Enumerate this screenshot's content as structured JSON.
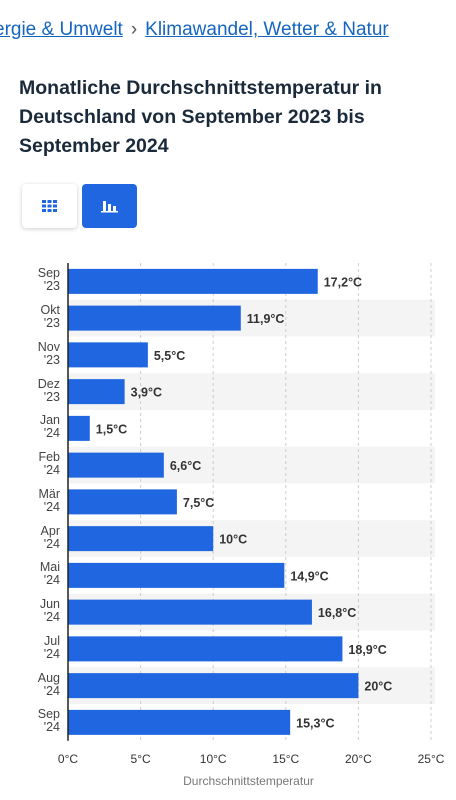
{
  "breadcrumb": [
    "ergie & Umwelt",
    "Klimawandel, Wetter & Natur"
  ],
  "chart_data": {
    "type": "bar",
    "orientation": "horizontal",
    "title": "Monatliche Durchschnittstemperatur in Deutschland von September 2023 bis September 2024",
    "categories": [
      "Sep '23",
      "Okt '23",
      "Nov '23",
      "Dez '23",
      "Jan '24",
      "Feb '24",
      "Mär '24",
      "Apr '24",
      "Mai '24",
      "Jun '24",
      "Jul '24",
      "Aug '24",
      "Sep '24"
    ],
    "values": [
      17.2,
      11.9,
      5.5,
      3.9,
      1.5,
      6.6,
      7.5,
      10,
      14.9,
      16.8,
      18.9,
      20,
      15.3
    ],
    "value_labels": [
      "17,2°C",
      "11,9°C",
      "5,5°C",
      "3,9°C",
      "1,5°C",
      "6,6°C",
      "7,5°C",
      "10°C",
      "14,9°C",
      "16,8°C",
      "18,9°C",
      "20°C",
      "15,3°C"
    ],
    "color": "#1f66e0",
    "xlabel": "Durchschnittstemperatur",
    "xlim": [
      0,
      25
    ],
    "xticks": [
      {
        "value": 0,
        "label": "0°C"
      },
      {
        "value": 5,
        "label": "5°C"
      },
      {
        "value": 10,
        "label": "10°C"
      },
      {
        "value": 15,
        "label": "15°C"
      },
      {
        "value": 20,
        "label": "20°C"
      },
      {
        "value": 25,
        "label": "25°C"
      }
    ],
    "grid": true
  }
}
